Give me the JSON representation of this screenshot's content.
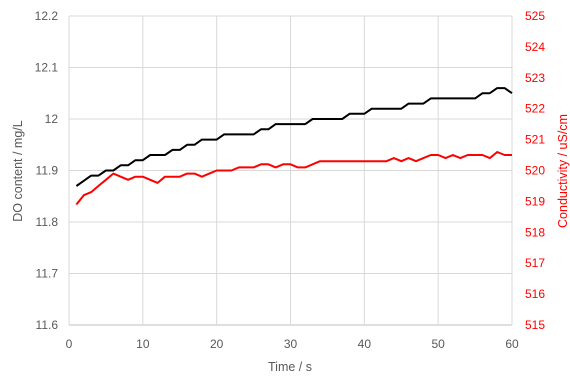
{
  "chart_data": {
    "type": "line",
    "title": "",
    "xlabel": "Time / s",
    "ylabel_left": "DO content / mg/L",
    "ylabel_right": "Conductivity / uS/cm",
    "xlim": [
      0,
      60
    ],
    "ylim_left": [
      11.6,
      12.2
    ],
    "ylim_right": [
      515,
      525
    ],
    "x_ticks": [
      "0",
      "10",
      "20",
      "30",
      "40",
      "50",
      "60"
    ],
    "y_left_ticks": [
      "11.6",
      "11.7",
      "11.8",
      "11.9",
      "12",
      "12.1",
      "12.2"
    ],
    "y_right_ticks": [
      "515",
      "516",
      "517",
      "518",
      "519",
      "520",
      "521",
      "522",
      "523",
      "524",
      "525"
    ],
    "grid": true,
    "legend": "none",
    "colors": {
      "do": "#000000",
      "conductivity": "#ff0000",
      "grid": "#d9d9d9",
      "right_axis_text": "#ff0000",
      "left_axis_text": "#595959"
    },
    "series": [
      {
        "axis": "left",
        "x": [
          1,
          2,
          3,
          4,
          5,
          6,
          7,
          8,
          9,
          10,
          11,
          12,
          13,
          14,
          15,
          16,
          17,
          18,
          19,
          20,
          21,
          22,
          23,
          24,
          25,
          26,
          27,
          28,
          29,
          30,
          31,
          32,
          33,
          34,
          35,
          36,
          37,
          38,
          39,
          40,
          41,
          42,
          43,
          44,
          45,
          46,
          47,
          48,
          49,
          50,
          51,
          52,
          53,
          54,
          55,
          56,
          57,
          58,
          59,
          60
        ],
        "values": [
          11.87,
          11.88,
          11.89,
          11.89,
          11.9,
          11.9,
          11.91,
          11.91,
          11.92,
          11.92,
          11.93,
          11.93,
          11.93,
          11.94,
          11.94,
          11.95,
          11.95,
          11.96,
          11.96,
          11.96,
          11.97,
          11.97,
          11.97,
          11.97,
          11.97,
          11.98,
          11.98,
          11.99,
          11.99,
          11.99,
          11.99,
          11.99,
          12.0,
          12.0,
          12.0,
          12.0,
          12.0,
          12.01,
          12.01,
          12.01,
          12.02,
          12.02,
          12.02,
          12.02,
          12.02,
          12.03,
          12.03,
          12.03,
          12.04,
          12.04,
          12.04,
          12.04,
          12.04,
          12.04,
          12.04,
          12.05,
          12.05,
          12.06,
          12.06,
          12.05
        ]
      },
      {
        "axis": "right",
        "x": [
          1,
          2,
          3,
          4,
          5,
          6,
          7,
          8,
          9,
          10,
          11,
          12,
          13,
          14,
          15,
          16,
          17,
          18,
          19,
          20,
          21,
          22,
          23,
          24,
          25,
          26,
          27,
          28,
          29,
          30,
          31,
          32,
          33,
          34,
          35,
          36,
          37,
          38,
          39,
          40,
          41,
          42,
          43,
          44,
          45,
          46,
          47,
          48,
          49,
          50,
          51,
          52,
          53,
          54,
          55,
          56,
          57,
          58,
          59,
          60
        ],
        "values": [
          518.9,
          519.2,
          519.3,
          519.5,
          519.7,
          519.9,
          519.8,
          519.7,
          519.8,
          519.8,
          519.7,
          519.6,
          519.8,
          519.8,
          519.8,
          519.9,
          519.9,
          519.8,
          519.9,
          520.0,
          520.0,
          520.0,
          520.1,
          520.1,
          520.1,
          520.2,
          520.2,
          520.1,
          520.2,
          520.2,
          520.1,
          520.1,
          520.2,
          520.3,
          520.3,
          520.3,
          520.3,
          520.3,
          520.3,
          520.3,
          520.3,
          520.3,
          520.3,
          520.4,
          520.3,
          520.4,
          520.3,
          520.4,
          520.5,
          520.5,
          520.4,
          520.5,
          520.4,
          520.5,
          520.5,
          520.5,
          520.4,
          520.6,
          520.5,
          520.5
        ]
      }
    ]
  }
}
